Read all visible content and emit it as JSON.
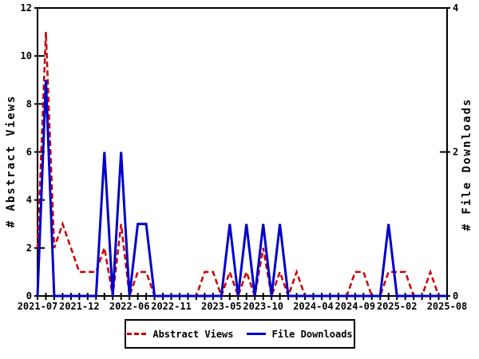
{
  "chart_data": {
    "type": "line",
    "title": "",
    "x": [
      "2021-07",
      "2021-08",
      "2021-09",
      "2021-10",
      "2021-11",
      "2021-12",
      "2022-01",
      "2022-02",
      "2022-03",
      "2022-04",
      "2022-05",
      "2022-06",
      "2022-07",
      "2022-08",
      "2022-09",
      "2022-10",
      "2022-11",
      "2022-12",
      "2023-01",
      "2023-02",
      "2023-03",
      "2023-04",
      "2023-05",
      "2023-06",
      "2023-07",
      "2023-08",
      "2023-09",
      "2023-10",
      "2023-11",
      "2023-12",
      "2024-01",
      "2024-02",
      "2024-03",
      "2024-04",
      "2024-05",
      "2024-06",
      "2024-07",
      "2024-08",
      "2024-09",
      "2024-10",
      "2024-11",
      "2024-12",
      "2025-01",
      "2025-02",
      "2025-03",
      "2025-04",
      "2025-05",
      "2025-06",
      "2025-07",
      "2025-08"
    ],
    "series": [
      {
        "name": "Abstract Views",
        "axis": "left",
        "color": "#cc0000",
        "style": "dashed",
        "values": [
          2,
          11,
          2,
          3,
          2,
          1,
          1,
          1,
          2,
          0,
          3,
          0,
          1,
          1,
          0,
          0,
          0,
          0,
          0,
          0,
          1,
          1,
          0,
          1,
          0,
          1,
          0,
          2,
          0,
          1,
          0,
          1,
          0,
          0,
          0,
          0,
          0,
          0,
          1,
          1,
          0,
          0,
          1,
          1,
          1,
          0,
          0,
          1,
          0,
          0
        ]
      },
      {
        "name": "File Downloads",
        "axis": "right",
        "color": "#0000cc",
        "style": "solid",
        "values": [
          0,
          3,
          0,
          0,
          0,
          0,
          0,
          0,
          2,
          0,
          2,
          0,
          1,
          1,
          0,
          0,
          0,
          0,
          0,
          0,
          0,
          0,
          0,
          1,
          0,
          1,
          0,
          1,
          0,
          1,
          0,
          0,
          0,
          0,
          0,
          0,
          0,
          0,
          0,
          0,
          0,
          0,
          1,
          0,
          0,
          0,
          0,
          0,
          0,
          0
        ]
      }
    ],
    "y_left": {
      "label": "# Abstract Views",
      "min": 0,
      "max": 12,
      "ticks": [
        0,
        2,
        4,
        6,
        8,
        10,
        12
      ]
    },
    "y_right": {
      "label": "# File Downloads",
      "min": 0,
      "max": 4,
      "ticks": [
        0,
        2,
        4
      ]
    },
    "x_axis": {
      "labeled_months": [
        "2021-07",
        "2021-12",
        "2022-06",
        "2022-11",
        "2023-05",
        "2023-10",
        "2024-04",
        "2024-09",
        "2025-02",
        "2025-08"
      ]
    },
    "grid": "off",
    "legend_position": "bottom-center",
    "axis_color": "#000000",
    "background_color": "#ffffff"
  }
}
